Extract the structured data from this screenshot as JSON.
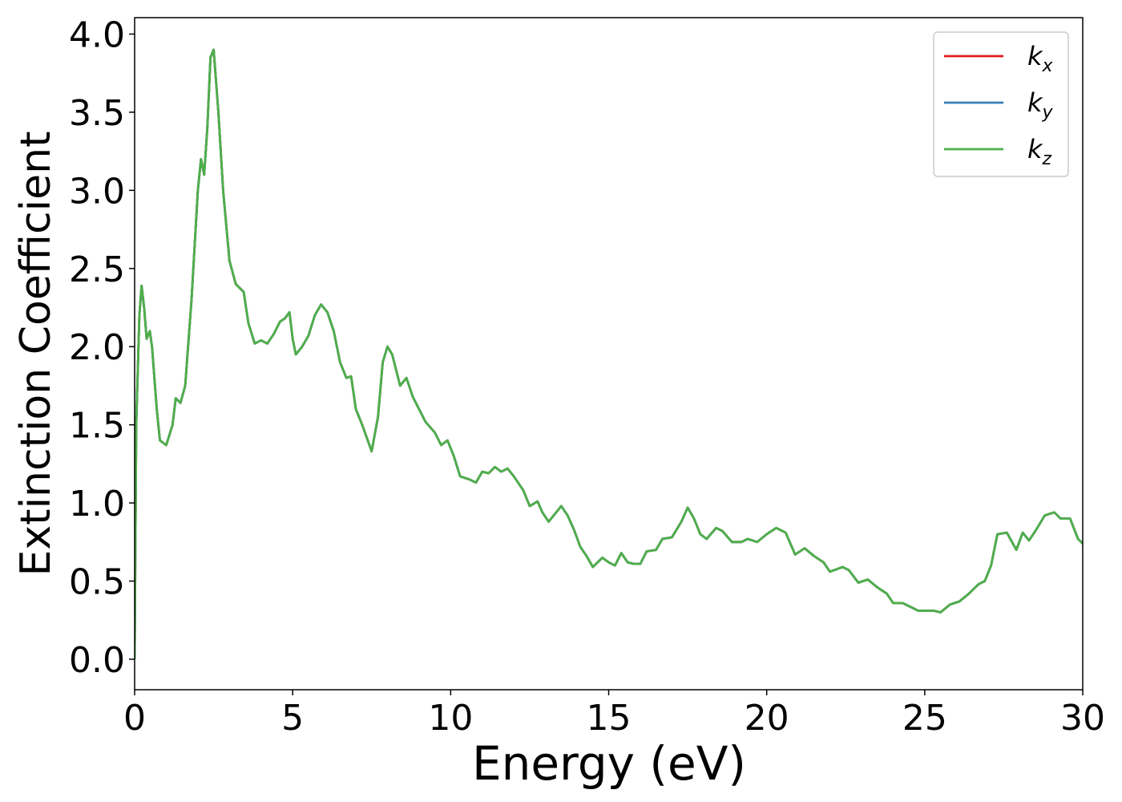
{
  "chart_data": {
    "type": "line",
    "xlabel": "Energy (eV)",
    "ylabel": "Extinction Coefficient",
    "xlim": [
      0,
      30
    ],
    "ylim": [
      -0.195,
      4.105
    ],
    "xticks": [
      0,
      5,
      10,
      15,
      20,
      25,
      30
    ],
    "yticks": [
      {
        "value": 0,
        "label": "0.0"
      },
      {
        "value": 0.5,
        "label": "0.5"
      },
      {
        "value": 1,
        "label": "1.0"
      },
      {
        "value": 1.5,
        "label": "1.5"
      },
      {
        "value": 2,
        "label": "2.0"
      },
      {
        "value": 2.5,
        "label": "2.5"
      },
      {
        "value": 3,
        "label": "3.0"
      },
      {
        "value": 3.5,
        "label": "3.5"
      },
      {
        "value": 4,
        "label": "4.0"
      }
    ],
    "legend": "upper right",
    "x": [
      0,
      0.05,
      0.15,
      0.22,
      0.3,
      0.38,
      0.48,
      0.55,
      0.7,
      0.8,
      1.0,
      1.2,
      1.3,
      1.45,
      1.6,
      1.8,
      2.0,
      2.1,
      2.2,
      2.3,
      2.4,
      2.5,
      2.65,
      2.8,
      3.0,
      3.2,
      3.35,
      3.45,
      3.6,
      3.8,
      4.0,
      4.2,
      4.4,
      4.6,
      4.75,
      4.9,
      5.0,
      5.1,
      5.3,
      5.5,
      5.7,
      5.9,
      6.1,
      6.3,
      6.5,
      6.7,
      6.85,
      7.0,
      7.2,
      7.5,
      7.7,
      7.85,
      8.0,
      8.15,
      8.4,
      8.6,
      8.8,
      9.0,
      9.2,
      9.5,
      9.7,
      9.9,
      10.1,
      10.3,
      10.6,
      10.8,
      11.0,
      11.2,
      11.4,
      11.6,
      11.8,
      12.0,
      12.3,
      12.5,
      12.75,
      12.9,
      13.1,
      13.3,
      13.5,
      13.7,
      13.9,
      14.1,
      14.3,
      14.5,
      14.8,
      15.0,
      15.2,
      15.4,
      15.6,
      15.8,
      16.0,
      16.2,
      16.5,
      16.7,
      17.0,
      17.3,
      17.5,
      17.7,
      17.9,
      18.1,
      18.4,
      18.6,
      18.9,
      19.2,
      19.4,
      19.7,
      20.0,
      20.3,
      20.6,
      20.9,
      21.2,
      21.5,
      21.8,
      22.0,
      22.4,
      22.6,
      22.9,
      23.2,
      23.5,
      23.8,
      24.0,
      24.3,
      24.6,
      24.8,
      25.3,
      25.5,
      25.8,
      26.1,
      26.4,
      26.7,
      26.9,
      27.1,
      27.3,
      27.6,
      27.9,
      28.1,
      28.3,
      28.5,
      28.8,
      29.1,
      29.3,
      29.6,
      29.85,
      30
    ],
    "series": [
      {
        "name": "kx",
        "color": "#e41a1c",
        "values": [
          0,
          1.5,
          2.2,
          2.39,
          2.25,
          2.05,
          2.1,
          2.0,
          1.6,
          1.4,
          1.37,
          1.5,
          1.67,
          1.64,
          1.75,
          2.3,
          3.0,
          3.2,
          3.1,
          3.4,
          3.85,
          3.9,
          3.5,
          3.0,
          2.55,
          2.4,
          2.37,
          2.35,
          2.15,
          2.02,
          2.04,
          2.02,
          2.08,
          2.16,
          2.18,
          2.22,
          2.05,
          1.95,
          2.0,
          2.07,
          2.2,
          2.27,
          2.22,
          2.1,
          1.9,
          1.8,
          1.81,
          1.6,
          1.5,
          1.33,
          1.55,
          1.9,
          2.0,
          1.95,
          1.75,
          1.8,
          1.68,
          1.6,
          1.52,
          1.45,
          1.37,
          1.4,
          1.3,
          1.17,
          1.15,
          1.13,
          1.2,
          1.19,
          1.23,
          1.2,
          1.22,
          1.17,
          1.08,
          0.98,
          1.01,
          0.94,
          0.88,
          0.93,
          0.98,
          0.92,
          0.83,
          0.72,
          0.66,
          0.59,
          0.65,
          0.62,
          0.6,
          0.68,
          0.62,
          0.61,
          0.61,
          0.69,
          0.7,
          0.77,
          0.78,
          0.88,
          0.97,
          0.9,
          0.8,
          0.77,
          0.84,
          0.82,
          0.75,
          0.75,
          0.77,
          0.75,
          0.8,
          0.84,
          0.81,
          0.67,
          0.71,
          0.66,
          0.62,
          0.56,
          0.59,
          0.57,
          0.49,
          0.51,
          0.46,
          0.42,
          0.36,
          0.36,
          0.33,
          0.31,
          0.31,
          0.3,
          0.35,
          0.37,
          0.42,
          0.48,
          0.5,
          0.6,
          0.8,
          0.81,
          0.7,
          0.81,
          0.76,
          0.82,
          0.92,
          0.94,
          0.9,
          0.9,
          0.77,
          0.74
        ]
      },
      {
        "name": "ky",
        "color": "#377eb8",
        "values": [
          0,
          1.5,
          2.2,
          2.39,
          2.25,
          2.05,
          2.1,
          2.0,
          1.6,
          1.4,
          1.37,
          1.5,
          1.67,
          1.64,
          1.75,
          2.3,
          3.0,
          3.2,
          3.1,
          3.4,
          3.85,
          3.9,
          3.5,
          3.0,
          2.55,
          2.4,
          2.37,
          2.35,
          2.15,
          2.02,
          2.04,
          2.02,
          2.08,
          2.16,
          2.18,
          2.22,
          2.05,
          1.95,
          2.0,
          2.07,
          2.2,
          2.27,
          2.22,
          2.1,
          1.9,
          1.8,
          1.81,
          1.6,
          1.5,
          1.33,
          1.55,
          1.9,
          2.0,
          1.95,
          1.75,
          1.8,
          1.68,
          1.6,
          1.52,
          1.45,
          1.37,
          1.4,
          1.3,
          1.17,
          1.15,
          1.13,
          1.2,
          1.19,
          1.23,
          1.2,
          1.22,
          1.17,
          1.08,
          0.98,
          1.01,
          0.94,
          0.88,
          0.93,
          0.98,
          0.92,
          0.83,
          0.72,
          0.66,
          0.59,
          0.65,
          0.62,
          0.6,
          0.68,
          0.62,
          0.61,
          0.61,
          0.69,
          0.7,
          0.77,
          0.78,
          0.88,
          0.97,
          0.9,
          0.8,
          0.77,
          0.84,
          0.82,
          0.75,
          0.75,
          0.77,
          0.75,
          0.8,
          0.84,
          0.81,
          0.67,
          0.71,
          0.66,
          0.62,
          0.56,
          0.59,
          0.57,
          0.49,
          0.51,
          0.46,
          0.42,
          0.36,
          0.36,
          0.33,
          0.31,
          0.31,
          0.3,
          0.35,
          0.37,
          0.42,
          0.48,
          0.5,
          0.6,
          0.8,
          0.81,
          0.7,
          0.81,
          0.76,
          0.82,
          0.92,
          0.94,
          0.9,
          0.9,
          0.77,
          0.74
        ]
      },
      {
        "name": "kz",
        "color": "#4daf4a",
        "values": [
          0,
          1.5,
          2.2,
          2.39,
          2.25,
          2.05,
          2.1,
          2.0,
          1.6,
          1.4,
          1.37,
          1.5,
          1.67,
          1.64,
          1.75,
          2.3,
          3.0,
          3.2,
          3.1,
          3.4,
          3.85,
          3.9,
          3.5,
          3.0,
          2.55,
          2.4,
          2.37,
          2.35,
          2.15,
          2.02,
          2.04,
          2.02,
          2.08,
          2.16,
          2.18,
          2.22,
          2.05,
          1.95,
          2.0,
          2.07,
          2.2,
          2.27,
          2.22,
          2.1,
          1.9,
          1.8,
          1.81,
          1.6,
          1.5,
          1.33,
          1.55,
          1.9,
          2.0,
          1.95,
          1.75,
          1.8,
          1.68,
          1.6,
          1.52,
          1.45,
          1.37,
          1.4,
          1.3,
          1.17,
          1.15,
          1.13,
          1.2,
          1.19,
          1.23,
          1.2,
          1.22,
          1.17,
          1.08,
          0.98,
          1.01,
          0.94,
          0.88,
          0.93,
          0.98,
          0.92,
          0.83,
          0.72,
          0.66,
          0.59,
          0.65,
          0.62,
          0.6,
          0.68,
          0.62,
          0.61,
          0.61,
          0.69,
          0.7,
          0.77,
          0.78,
          0.88,
          0.97,
          0.9,
          0.8,
          0.77,
          0.84,
          0.82,
          0.75,
          0.75,
          0.77,
          0.75,
          0.8,
          0.84,
          0.81,
          0.67,
          0.71,
          0.66,
          0.62,
          0.56,
          0.59,
          0.57,
          0.49,
          0.51,
          0.46,
          0.42,
          0.36,
          0.36,
          0.33,
          0.31,
          0.31,
          0.3,
          0.35,
          0.37,
          0.42,
          0.48,
          0.5,
          0.6,
          0.8,
          0.81,
          0.7,
          0.81,
          0.76,
          0.82,
          0.92,
          0.94,
          0.9,
          0.9,
          0.77,
          0.74
        ]
      }
    ]
  }
}
